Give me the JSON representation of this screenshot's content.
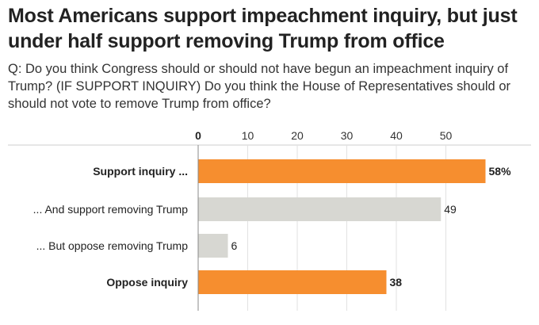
{
  "title": "Most Americans support impeachment inquiry, but just under half support removing Trump from office",
  "subtitle": "Q: Do you think Congress should or should not have begun an impeachment inquiry of Trump? (IF SUPPORT INQUIRY) Do you think the House of Representatives should or should not vote to remove Trump from office?",
  "colors": {
    "highlight": "#f68e2f",
    "muted": "#d7d7d2",
    "gridline": "#e2e2e2",
    "axis": "#cccccc"
  },
  "chart_data": {
    "type": "bar",
    "orientation": "horizontal",
    "categories": [
      "Support inquiry ...",
      "... And support removing Trump",
      "... But oppose removing Trump",
      "Oppose inquiry"
    ],
    "values": [
      58,
      49,
      6,
      38
    ],
    "value_labels": [
      "58%",
      "49",
      "6",
      "38"
    ],
    "highlight": [
      true,
      false,
      false,
      true
    ],
    "xlim": [
      0,
      60
    ],
    "xticks": [
      0,
      10,
      20,
      30,
      40,
      50
    ],
    "xtick_labels": [
      "0",
      "10",
      "20",
      "30",
      "40",
      "50"
    ],
    "grid": true
  }
}
